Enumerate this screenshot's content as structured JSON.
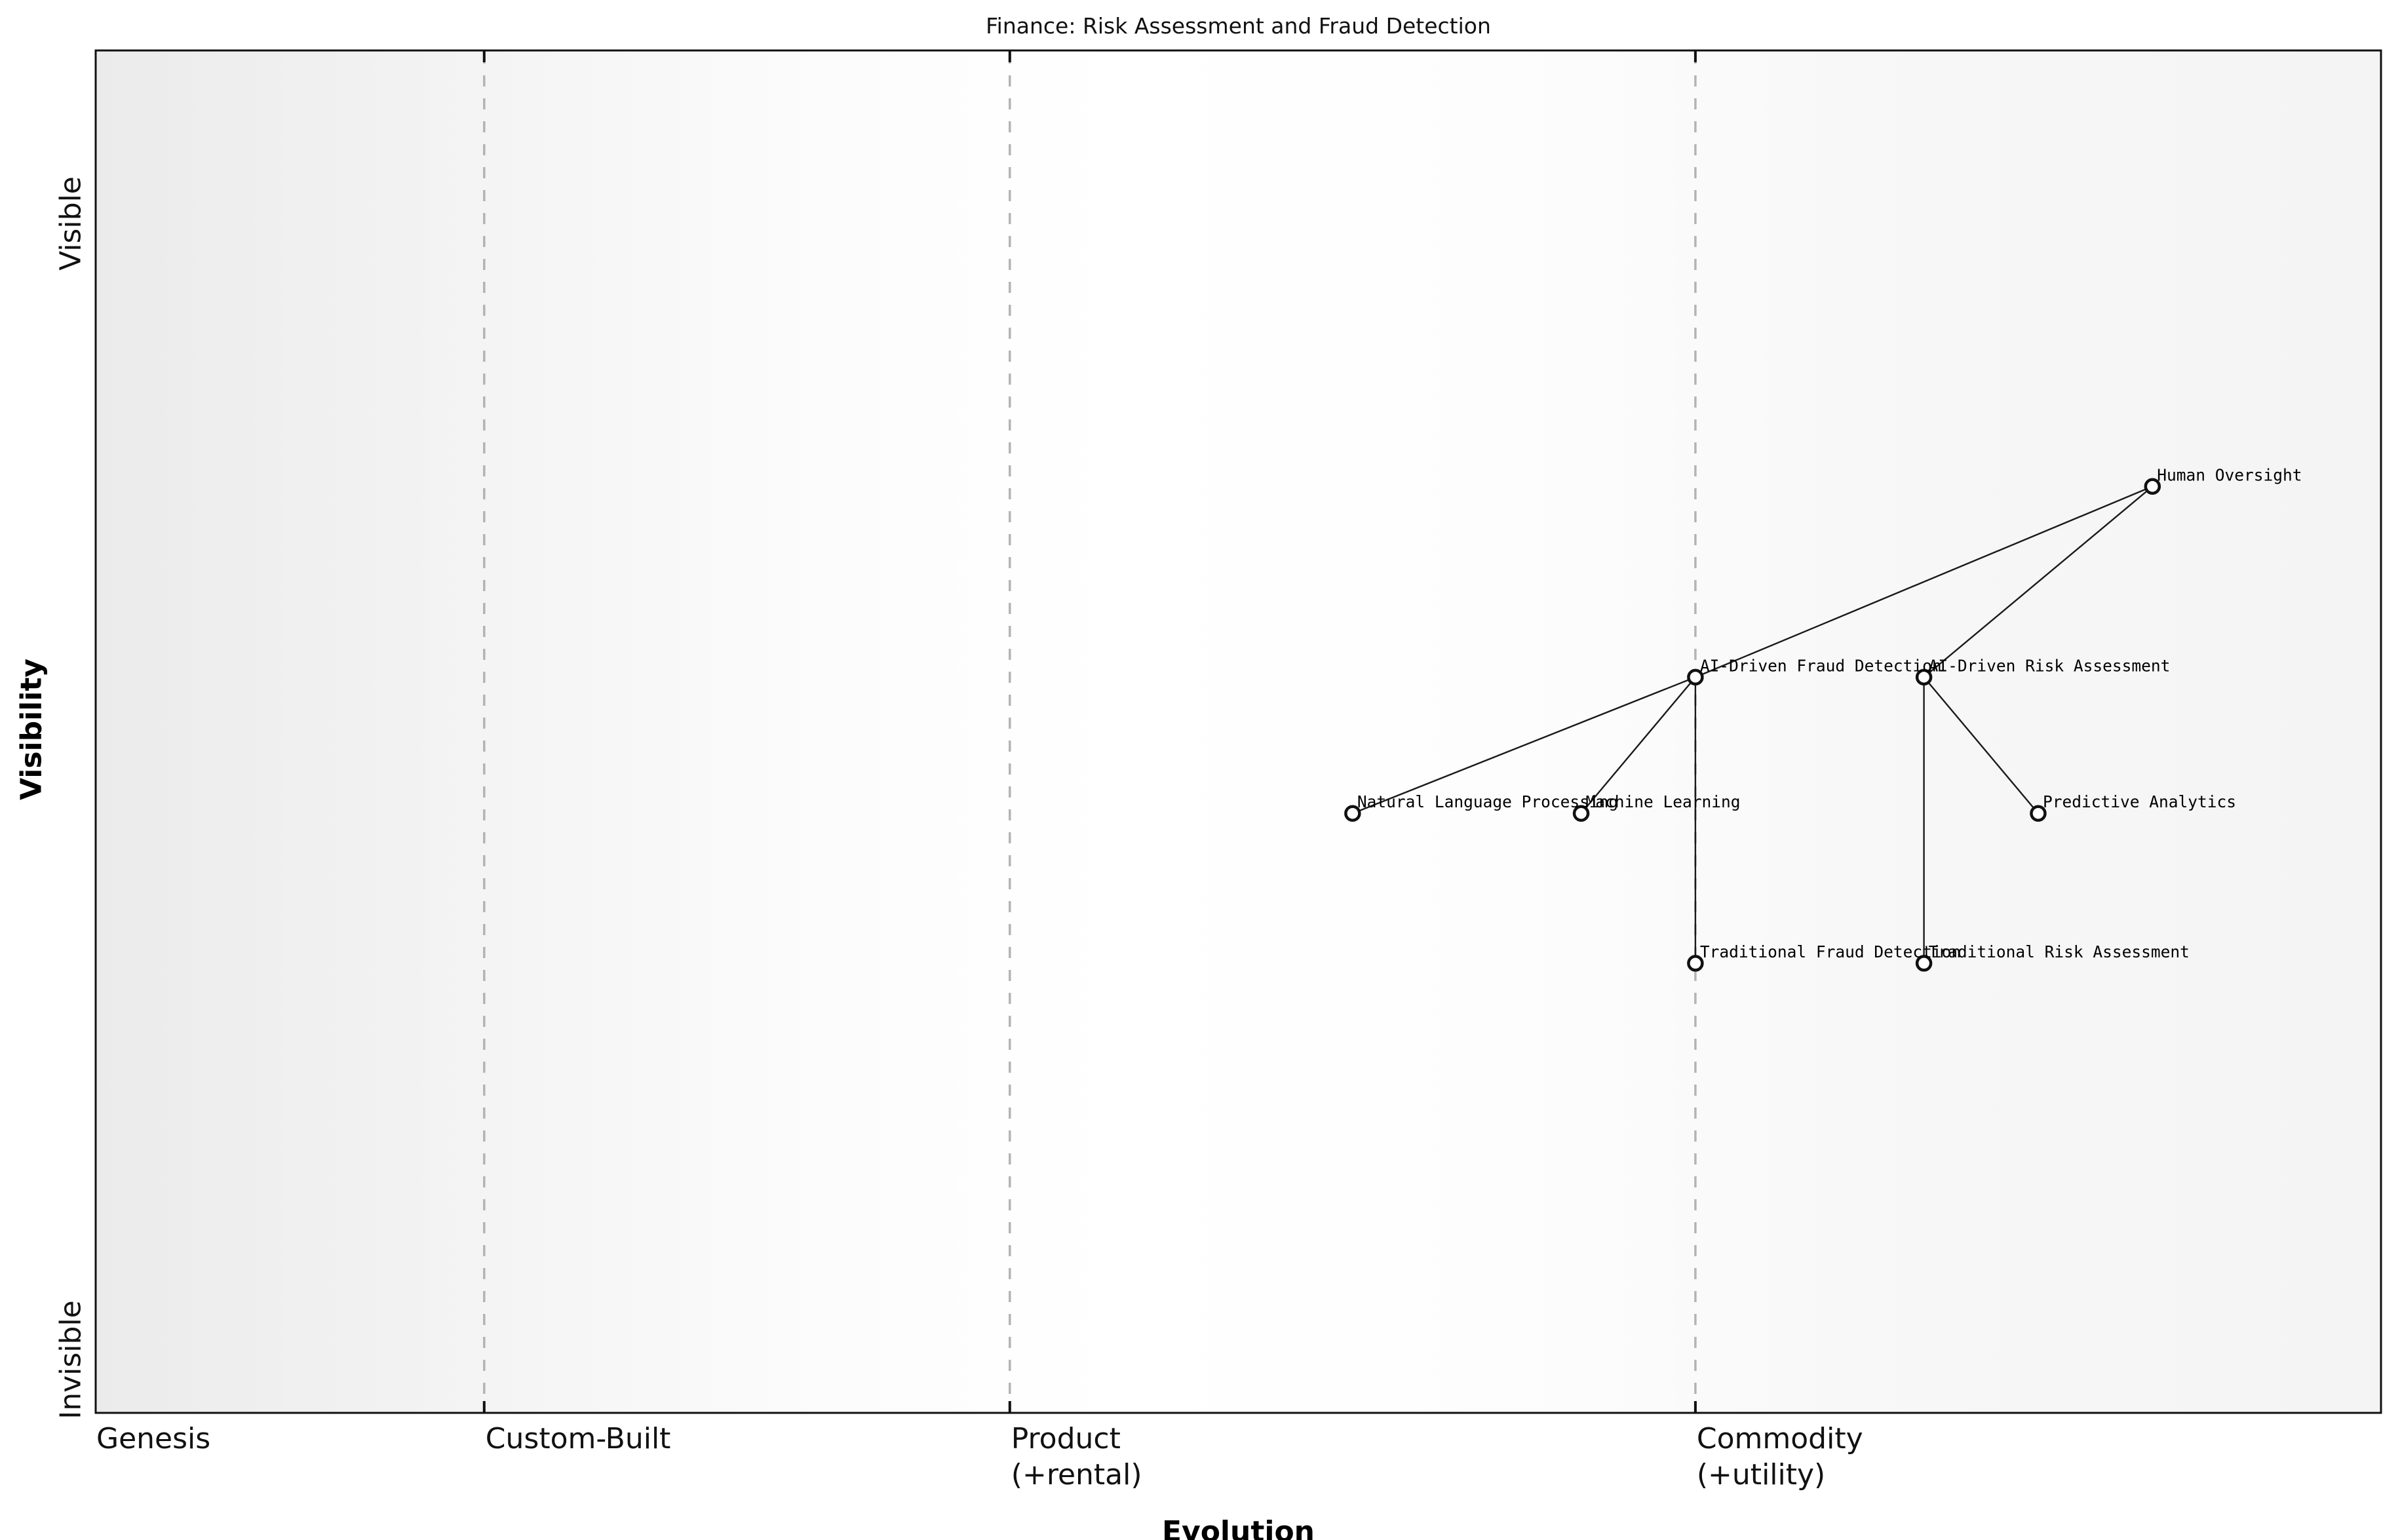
{
  "chart_data": {
    "type": "scatter",
    "variant": "wardley_map",
    "title": "Finance: Risk Assessment and Fraud Detection",
    "xlabel": "Evolution",
    "ylabel": "Visibility",
    "xlim": [
      0,
      1
    ],
    "ylim": [
      0,
      1
    ],
    "grid": false,
    "legend": "none",
    "x_stage_ticks": [
      {
        "id": "genesis",
        "label": "Genesis",
        "x": 0.0
      },
      {
        "id": "custom-built",
        "label": "Custom-Built",
        "x": 0.17
      },
      {
        "id": "product",
        "label": "Product\n(+rental)",
        "x": 0.4
      },
      {
        "id": "commodity",
        "label": "Commodity\n(+utility)",
        "x": 0.7
      }
    ],
    "y_ticks": [
      {
        "id": "visible",
        "label": "Visible",
        "y": 1.0
      },
      {
        "id": "invisible",
        "label": "Invisible",
        "y": 0.0
      }
    ],
    "stage_boundaries_x": [
      0.17,
      0.4,
      0.7
    ],
    "nodes": [
      {
        "name": "Human Oversight",
        "evolution": 0.9,
        "visibility": 0.68
      },
      {
        "name": "AI-Driven Fraud Detection",
        "evolution": 0.7,
        "visibility": 0.54
      },
      {
        "name": "AI-Driven Risk Assessment",
        "evolution": 0.8,
        "visibility": 0.54
      },
      {
        "name": "Natural Language Processing",
        "evolution": 0.55,
        "visibility": 0.44
      },
      {
        "name": "Machine Learning",
        "evolution": 0.65,
        "visibility": 0.44
      },
      {
        "name": "Predictive Analytics",
        "evolution": 0.85,
        "visibility": 0.44
      },
      {
        "name": "Traditional Fraud Detection",
        "evolution": 0.7,
        "visibility": 0.33
      },
      {
        "name": "Traditional Risk Assessment",
        "evolution": 0.8,
        "visibility": 0.33
      }
    ],
    "edges": [
      [
        "Human Oversight",
        "AI-Driven Fraud Detection"
      ],
      [
        "Human Oversight",
        "AI-Driven Risk Assessment"
      ],
      [
        "AI-Driven Fraud Detection",
        "Natural Language Processing"
      ],
      [
        "AI-Driven Fraud Detection",
        "Machine Learning"
      ],
      [
        "AI-Driven Fraud Detection",
        "Traditional Fraud Detection"
      ],
      [
        "AI-Driven Risk Assessment",
        "Predictive Analytics"
      ],
      [
        "AI-Driven Risk Assessment",
        "Traditional Risk Assessment"
      ]
    ]
  },
  "style": {
    "node_fill": "#ffffff",
    "node_stroke": "#111111",
    "edge_color": "#1a1a1a",
    "boundary_line_color": "#b3b3b3",
    "spine_color": "#111111",
    "bg_gradient_left": "#ebebeb",
    "bg_gradient_middle": "#ffffff",
    "bg_gradient_right": "#f4f4f4"
  }
}
